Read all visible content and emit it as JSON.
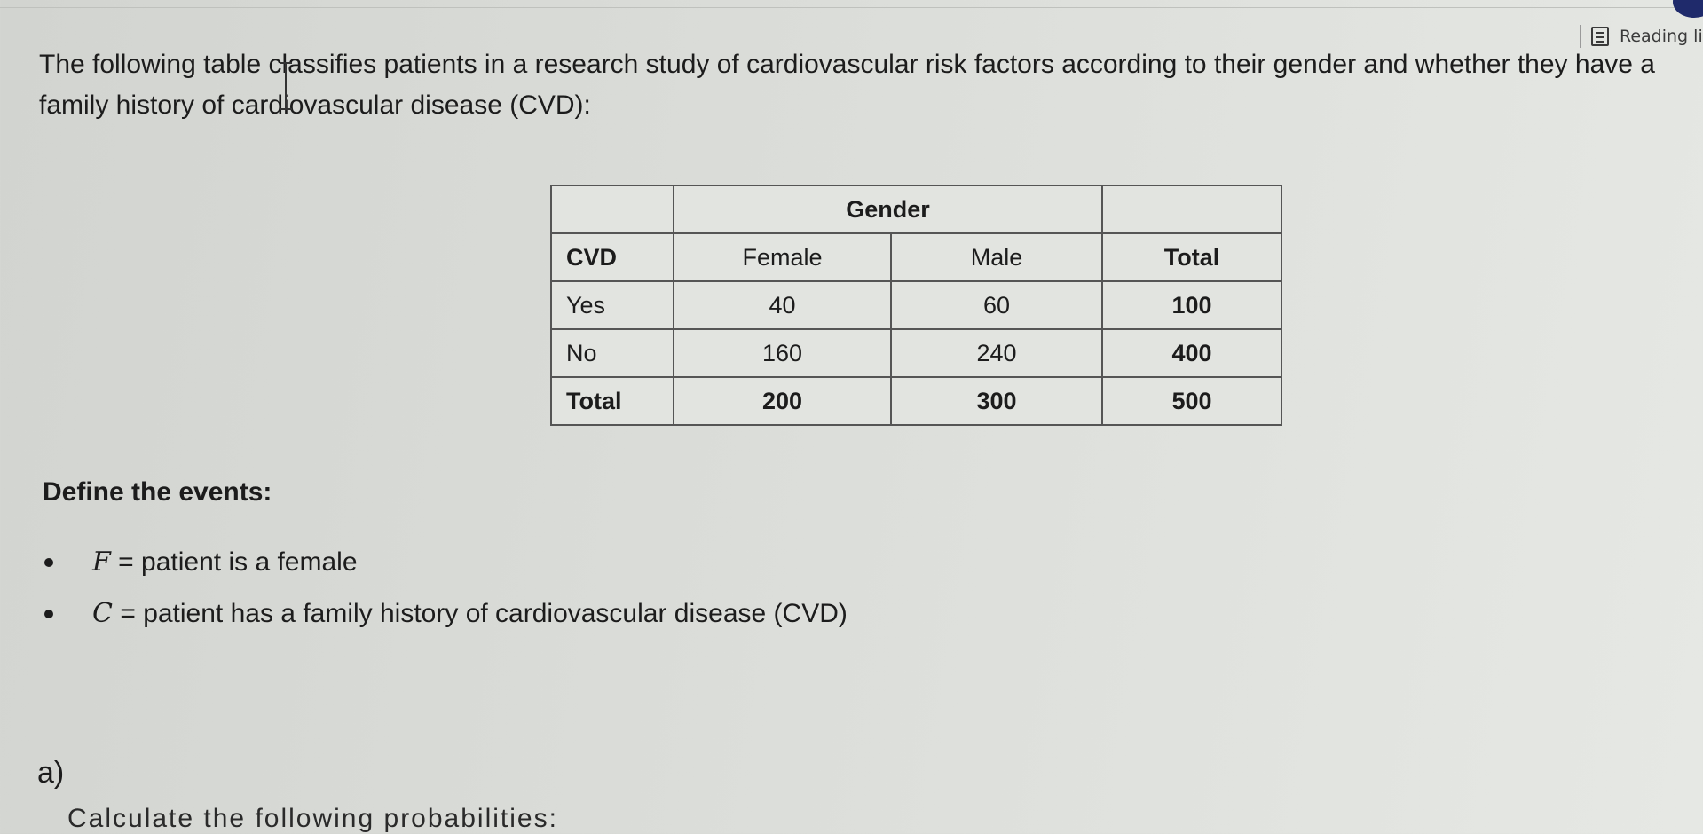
{
  "browser": {
    "reading_list_label": "Reading li"
  },
  "intro_text": "The following table classifies patients in a research study of cardiovascular risk factors according to their gender and whether they have a family history of cardiovascular disease (CVD):",
  "table": {
    "group_header": "Gender",
    "columns": [
      "CVD",
      "Female",
      "Male",
      "Total"
    ],
    "rows": [
      {
        "label": "Yes",
        "female": "40",
        "male": "60",
        "total": "100"
      },
      {
        "label": "No",
        "female": "160",
        "male": "240",
        "total": "400"
      },
      {
        "label": "Total",
        "female": "200",
        "male": "300",
        "total": "500"
      }
    ]
  },
  "define_heading": "Define the events:",
  "events": [
    {
      "var": "F",
      "eq": "=",
      "desc": "patient is a female"
    },
    {
      "var": "C",
      "eq": "=",
      "desc": "patient has a family history of cardiovascular disease (CVD)"
    }
  ],
  "part_label": "a)",
  "cut_text": "Calculate the following probabilities:",
  "colors": {
    "background": "#dadcd8",
    "text": "#1c1c1c",
    "table_border": "#555555",
    "corner_badge": "#1f2a6b"
  }
}
